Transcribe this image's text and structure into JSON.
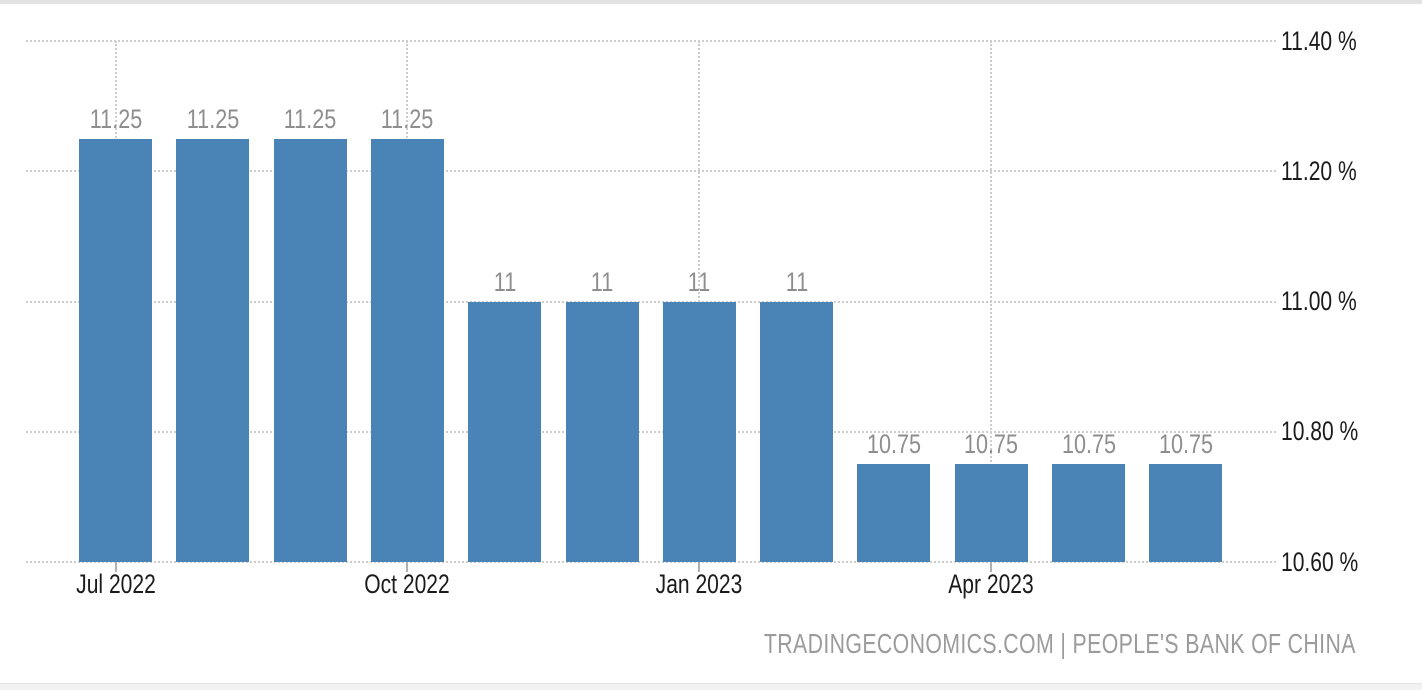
{
  "chart_data": {
    "type": "bar",
    "title": "",
    "xlabel": "",
    "ylabel": "",
    "ylim": [
      10.6,
      11.4
    ],
    "grid": "dotted",
    "legend": null,
    "bar_color": "#4a83b6",
    "grid_color": "#cdcdcd",
    "tick_color": "#b0b0b0",
    "value_label_color": "#8e8e8e",
    "axis_label_color": "#1b1b1b",
    "bars": [
      {
        "label": "11.25",
        "value": 11.25
      },
      {
        "label": "11.25",
        "value": 11.25
      },
      {
        "label": "11.25",
        "value": 11.25
      },
      {
        "label": "11.25",
        "value": 11.25
      },
      {
        "label": "11",
        "value": 11.0
      },
      {
        "label": "11",
        "value": 11.0
      },
      {
        "label": "11",
        "value": 11.0
      },
      {
        "label": "11",
        "value": 11.0
      },
      {
        "label": "10.75",
        "value": 10.75
      },
      {
        "label": "10.75",
        "value": 10.75
      },
      {
        "label": "10.75",
        "value": 10.75
      },
      {
        "label": "10.75",
        "value": 10.75
      }
    ],
    "x_ticks": [
      {
        "bar_index": 0,
        "label": "Jul 2022"
      },
      {
        "bar_index": 3,
        "label": "Oct 2022"
      },
      {
        "bar_index": 6,
        "label": "Jan 2023"
      },
      {
        "bar_index": 9,
        "label": "Apr 2023"
      }
    ],
    "y_ticks": [
      {
        "value": 11.4,
        "label": "11.40 %"
      },
      {
        "value": 11.2,
        "label": "11.20 %"
      },
      {
        "value": 11.0,
        "label": "11.00 %"
      },
      {
        "value": 10.8,
        "label": "10.80 %"
      },
      {
        "value": 10.6,
        "label": "10.60 %"
      }
    ]
  },
  "attribution": {
    "text": "TRADINGECONOMICS.COM | PEOPLE'S BANK OF CHINA",
    "color": "#9b9b9b"
  }
}
